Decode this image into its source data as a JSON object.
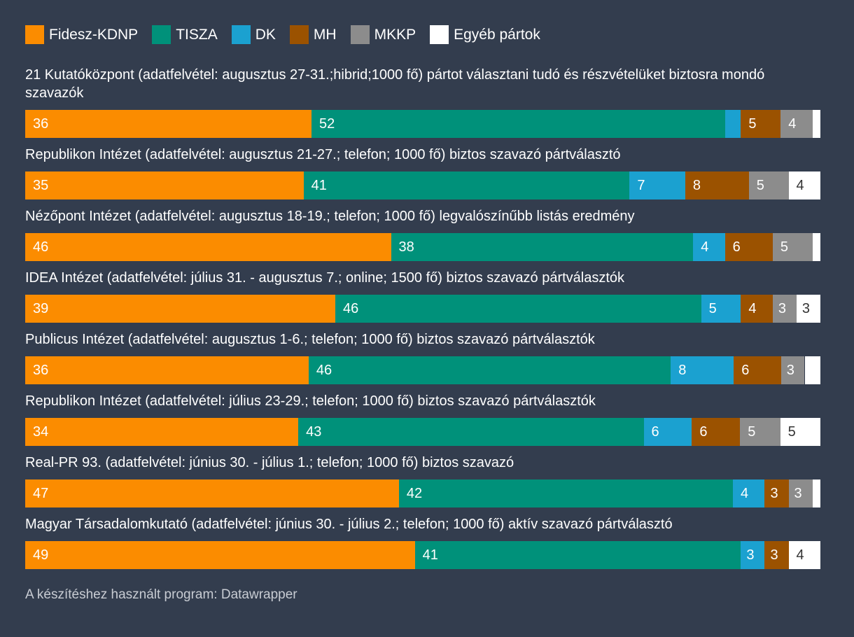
{
  "colors": {
    "Fidesz-KDNP": "#fb8c00",
    "TISZA": "#00917a",
    "DK": "#1ba1d0",
    "MH": "#9b5200",
    "MKKP": "#8c8c8c",
    "Egyéb pártok": "#ffffff"
  },
  "chart_data": {
    "type": "stacked-bar",
    "series_names": [
      "Fidesz-KDNP",
      "TISZA",
      "DK",
      "MH",
      "MKKP",
      "Egyéb pártok"
    ],
    "rows": [
      {
        "label": "21 Kutatóközpont (adatfelvétel: augusztus 27-31.;hibrid;1000 fő) pártot választani tudó és részvételüket biztosra mondó szavazók",
        "values": [
          36,
          52,
          2,
          5,
          4,
          1
        ],
        "labels": [
          "36",
          "52",
          "",
          "5",
          "4",
          ""
        ]
      },
      {
        "label": "Republikon Intézet (adatfelvétel: augusztus 21-27.; telefon; 1000 fő) biztos szavazó pártválasztó",
        "values": [
          35,
          41,
          7,
          8,
          5,
          4
        ],
        "labels": [
          "35",
          "41",
          "7",
          "8",
          "5",
          "4"
        ]
      },
      {
        "label": "Nézőpont Intézet (adatfelvétel: augusztus 18-19.; telefon; 1000 fő) legvalószínűbb listás eredmény",
        "values": [
          46,
          38,
          4,
          6,
          5,
          1
        ],
        "labels": [
          "46",
          "38",
          "4",
          "6",
          "5",
          ""
        ]
      },
      {
        "label": "IDEA Intézet (adatfelvétel: július 31. - augusztus 7.; online; 1500 fő) biztos szavazó pártválasztók",
        "values": [
          39,
          46,
          5,
          4,
          3,
          3
        ],
        "labels": [
          "39",
          "46",
          "5",
          "4",
          "3",
          "3"
        ]
      },
      {
        "label": "Publicus Intézet (adatfelvétel: augusztus 1-6.; telefon; 1000 fő) biztos szavazó pártválasztók",
        "values": [
          36,
          46,
          8,
          6,
          3,
          2
        ],
        "labels": [
          "36",
          "46",
          "8",
          "6",
          "3",
          ""
        ]
      },
      {
        "label": "Republikon Intézet (adatfelvétel: július 23-29.; telefon; 1000 fő) biztos szavazó pártválasztók",
        "values": [
          34,
          43,
          6,
          6,
          5,
          5
        ],
        "labels": [
          "34",
          "43",
          "6",
          "6",
          "5",
          "5"
        ]
      },
      {
        "label": "Real-PR 93. (adatfelvétel: június 30. - július 1.; telefon; 1000 fő) biztos szavazó",
        "values": [
          47,
          42,
          4,
          3,
          3,
          1
        ],
        "labels": [
          "47",
          "42",
          "4",
          "3",
          "3",
          ""
        ]
      },
      {
        "label": "Magyar Társadalomkutató (adatfelvétel: június 30. - július 2.; telefon; 1000 fő) aktív szavazó pártválasztó",
        "values": [
          49,
          41,
          3,
          3,
          0,
          4
        ],
        "labels": [
          "49",
          "41",
          "3",
          "3",
          "",
          "4"
        ]
      }
    ],
    "xlim": [
      0,
      100
    ]
  },
  "footer": "A készítéshez használt program: Datawrapper"
}
